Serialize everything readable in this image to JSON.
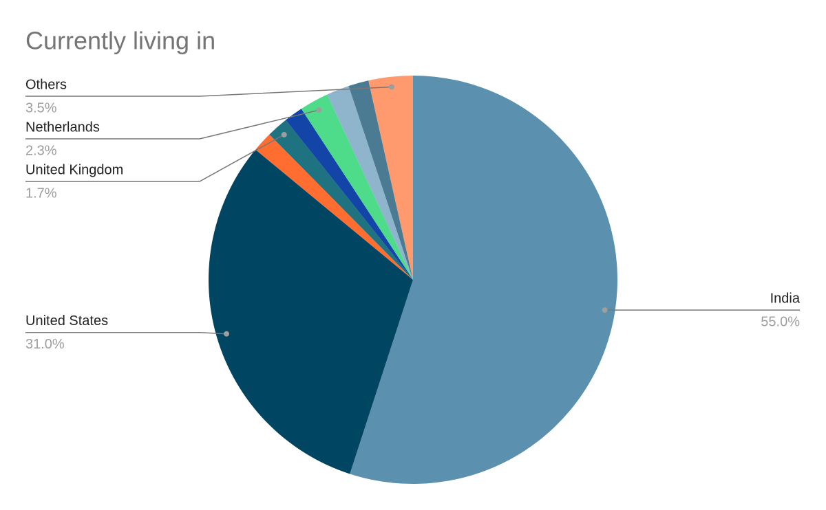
{
  "chart_data": {
    "type": "pie",
    "title": "Currently living in",
    "categories": [
      "India",
      "United States",
      null,
      "United Kingdom",
      null,
      "Netherlands",
      null,
      null,
      "Others"
    ],
    "values": [
      55.0,
      31.0,
      1.6,
      1.7,
      1.5,
      2.3,
      1.8,
      1.6,
      3.5
    ],
    "value_labels": [
      "55.0%",
      "31.0%",
      null,
      "1.7%",
      null,
      "2.3%",
      null,
      null,
      "3.5%"
    ],
    "colors": [
      "#5b90ae",
      "#004562",
      "#ff6d31",
      "#1f727f",
      "#1344a8",
      "#4edc8b",
      "#8fb5cc",
      "#4a7b93",
      "#ff9a6e"
    ]
  }
}
